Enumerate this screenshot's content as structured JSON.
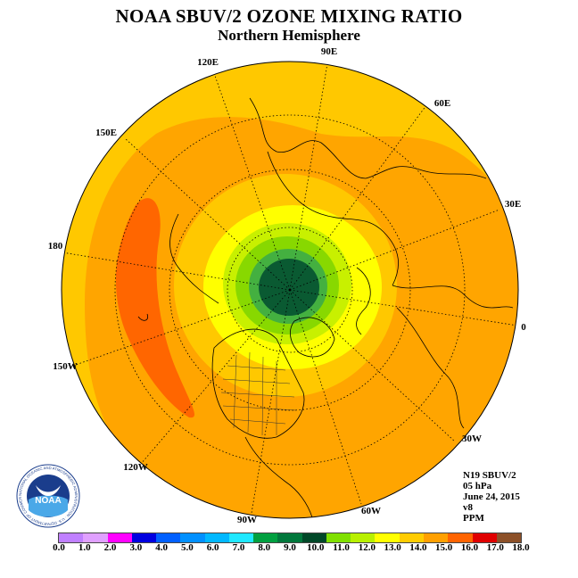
{
  "title": "NOAA SBUV/2 OZONE MIXING RATIO",
  "subtitle": "Northern Hemisphere",
  "longitude_labels": {
    "e90": "90E",
    "e120": "120E",
    "e60": "60E",
    "e150": "150E",
    "e30": "30E",
    "d180": "180",
    "d0": "0",
    "w150": "150W",
    "w30": "30W",
    "w120": "120W",
    "w60": "60W",
    "w90": "90W"
  },
  "info": {
    "instrument": "N19 SBUV/2",
    "pressure": "05 hPa",
    "date": "June 24, 2015",
    "version": "v8",
    "units": "PPM"
  },
  "logo": {
    "text": "NOAA",
    "ring_text": "NATIONAL OCEANIC AND ATMOSPHERIC ADMINISTRATION · U.S. DEPARTMENT OF COMMERCE"
  },
  "colorbar": {
    "ticks": [
      "0.0",
      "1.0",
      "2.0",
      "3.0",
      "4.0",
      "5.0",
      "6.0",
      "7.0",
      "8.0",
      "9.0",
      "10.0",
      "11.0",
      "12.0",
      "13.0",
      "14.0",
      "15.0",
      "16.0",
      "17.0",
      "18.0"
    ],
    "colors": [
      "#c080ff",
      "#e0a0ff",
      "#ff00ff",
      "#0000e0",
      "#0060ff",
      "#0090ff",
      "#00b8ff",
      "#20e8ff",
      "#00a040",
      "#00783c",
      "#004828",
      "#80e000",
      "#b8f000",
      "#ffff00",
      "#ffcc00",
      "#ffa000",
      "#ff6400",
      "#e00000",
      "#8c5028"
    ]
  },
  "map_colors": {
    "outer": "#ffc800",
    "band_14": "#ffa500",
    "band_15": "#ff6600",
    "band_13": "#ffff00",
    "band_12": "#c8f000",
    "band_11": "#88d800",
    "band_10": "#44b040",
    "core": "#0a5a32"
  }
}
